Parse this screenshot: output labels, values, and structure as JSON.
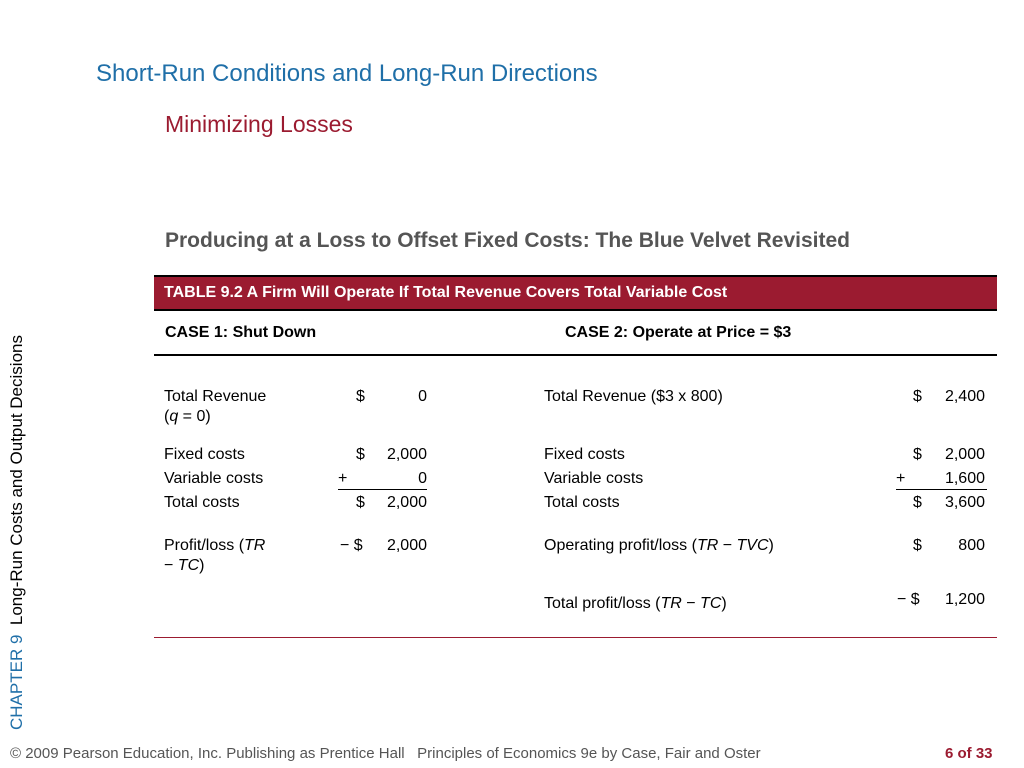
{
  "slide": {
    "title": "Short-Run Conditions and Long-Run Directions",
    "subtitle": "Minimizing Losses",
    "heading": "Producing at a Loss to Offset Fixed Costs: The Blue Velvet Revisited"
  },
  "sidebar": {
    "chapter_label": "CHAPTER 9",
    "chapter_title": "Long-Run Costs and Output Decisions"
  },
  "table": {
    "caption": "TABLE 9.2  A Firm Will Operate If Total Revenue Covers Total Variable Cost",
    "case1": {
      "header": "CASE 1:  Shut Down",
      "tr_label_a": "Total Revenue",
      "tr_label_b_open": "(",
      "tr_label_b_var": "q",
      "tr_label_b_rest": " = 0)",
      "tr_sign": "$",
      "tr_value": "0",
      "fc_label": "Fixed costs",
      "fc_sign": "$",
      "fc_value": "2,000",
      "vc_label": "Variable costs",
      "vc_sign": "+",
      "vc_value": "0",
      "tc_label": "Total costs",
      "tc_sign": "$",
      "tc_value": "2,000",
      "pl_label_a": "Profit/loss (",
      "pl_label_var1": "TR",
      "pl_label_b_minus": "− ",
      "pl_label_var2": "TC",
      "pl_label_close": ")",
      "pl_sign": "− $",
      "pl_value": "2,000"
    },
    "case2": {
      "header": "CASE 2:  Operate at Price = $3",
      "tr_label": "Total Revenue ($3 x 800)",
      "tr_sign": "$",
      "tr_value": "2,400",
      "fc_label": "Fixed costs",
      "fc_sign": "$",
      "fc_value": "2,000",
      "vc_label": "Variable costs",
      "vc_sign": "+",
      "vc_value": "1,600",
      "tc_label": "Total costs",
      "tc_sign": "$",
      "tc_value": "3,600",
      "op_label_a": "Operating profit/loss (",
      "op_var1": "TR",
      "op_minus": " − ",
      "op_var2": "TVC",
      "op_close": ")",
      "op_sign": "$",
      "op_value": "800",
      "tp_label_a": "Total profit/loss (",
      "tp_var1": "TR",
      "tp_minus": " − ",
      "tp_var2": "TC",
      "tp_close": ")",
      "tp_sign": "− $",
      "tp_value": "1,200"
    }
  },
  "footer": {
    "copyright": "© 2009 Pearson Education, Inc. Publishing as Prentice Hall",
    "book": "Principles of Economics 9e by Case, Fair and Oster",
    "page": "6 of 33"
  }
}
